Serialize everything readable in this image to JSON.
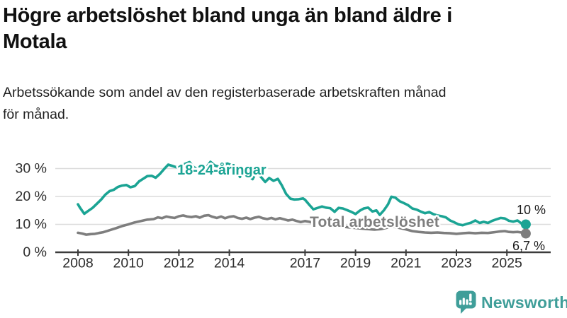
{
  "header": {
    "title_lines": [
      "Högre arbetslöshet bland unga än bland äldre i",
      "Motala"
    ],
    "subtitle_lines": [
      "Arbetssökande som andel av den registerbaserade arbetskraften månad",
      "för månad."
    ]
  },
  "chart_data": {
    "type": "line",
    "title": "Högre arbetslöshet bland unga än bland äldre i Motala",
    "subtitle": "Arbetssökande som andel av den registerbaserade arbetskraften månad för månad.",
    "unit": "%",
    "xlim": [
      2007.1,
      2026.7
    ],
    "ylim": [
      0,
      35
    ],
    "grid": true,
    "legend_position": "inline-labels",
    "colors": {
      "grid": "#dcdcdc",
      "axis": "#3c3c3c",
      "tick_label": "#2d2d2d",
      "end_label": "#1a1a1a"
    },
    "y_ticks": [
      {
        "value": 0,
        "label": "0 %"
      },
      {
        "value": 10,
        "label": "10 %"
      },
      {
        "value": 20,
        "label": "20 %"
      },
      {
        "value": 30,
        "label": "30 %"
      }
    ],
    "x_ticks": [
      {
        "year": 2008,
        "label": "2008"
      },
      {
        "year": 2010,
        "label": "2010"
      },
      {
        "year": 2012,
        "label": "2012"
      },
      {
        "year": 2014,
        "label": "2014"
      },
      {
        "year": 2017,
        "label": "2017"
      },
      {
        "year": 2019,
        "label": "2019"
      },
      {
        "year": 2021,
        "label": "2021"
      },
      {
        "year": 2023,
        "label": "2023"
      },
      {
        "year": 2025,
        "label": "2025"
      }
    ],
    "series": [
      {
        "name": "18-24-åringar",
        "color": "#1ba494",
        "end_label": "10 %",
        "end_value": 10.0,
        "points": [
          [
            2008.0,
            17.2
          ],
          [
            2008.08,
            16.0
          ],
          [
            2008.25,
            13.8
          ],
          [
            2008.42,
            14.9
          ],
          [
            2008.58,
            15.9
          ],
          [
            2008.75,
            17.4
          ],
          [
            2008.92,
            18.9
          ],
          [
            2009.08,
            20.6
          ],
          [
            2009.25,
            21.9
          ],
          [
            2009.42,
            22.4
          ],
          [
            2009.58,
            23.4
          ],
          [
            2009.75,
            23.9
          ],
          [
            2009.92,
            24.1
          ],
          [
            2010.08,
            23.3
          ],
          [
            2010.25,
            23.7
          ],
          [
            2010.42,
            25.4
          ],
          [
            2010.58,
            26.3
          ],
          [
            2010.75,
            27.3
          ],
          [
            2010.92,
            27.4
          ],
          [
            2011.08,
            26.7
          ],
          [
            2011.25,
            28.1
          ],
          [
            2011.42,
            29.9
          ],
          [
            2011.58,
            31.4
          ],
          [
            2011.75,
            30.9
          ],
          [
            2011.92,
            30.4
          ],
          [
            2012.08,
            31.0
          ],
          [
            2012.25,
            31.7
          ],
          [
            2012.42,
            32.3
          ],
          [
            2012.58,
            30.6
          ],
          [
            2012.75,
            29.6
          ],
          [
            2012.92,
            28.3
          ],
          [
            2013.08,
            30.2
          ],
          [
            2013.25,
            32.4
          ],
          [
            2013.42,
            31.1
          ],
          [
            2013.58,
            30.7
          ],
          [
            2013.75,
            31.3
          ],
          [
            2013.92,
            31.8
          ],
          [
            2014.08,
            31.2
          ],
          [
            2014.25,
            29.2
          ],
          [
            2014.42,
            27.0
          ],
          [
            2014.58,
            29.5
          ],
          [
            2014.75,
            27.5
          ],
          [
            2014.92,
            26.2
          ],
          [
            2015.08,
            28.8
          ],
          [
            2015.25,
            27.0
          ],
          [
            2015.42,
            25.2
          ],
          [
            2015.58,
            26.6
          ],
          [
            2015.75,
            25.6
          ],
          [
            2015.92,
            26.3
          ],
          [
            2016.08,
            24.0
          ],
          [
            2016.25,
            20.9
          ],
          [
            2016.42,
            19.2
          ],
          [
            2016.58,
            18.9
          ],
          [
            2016.75,
            19.0
          ],
          [
            2016.92,
            19.3
          ],
          [
            2017.0,
            18.8
          ],
          [
            2017.17,
            17.0
          ],
          [
            2017.33,
            15.4
          ],
          [
            2017.5,
            15.9
          ],
          [
            2017.67,
            16.4
          ],
          [
            2017.83,
            16.0
          ],
          [
            2018.0,
            15.8
          ],
          [
            2018.17,
            14.5
          ],
          [
            2018.33,
            15.9
          ],
          [
            2018.5,
            15.7
          ],
          [
            2018.67,
            15.1
          ],
          [
            2018.83,
            14.5
          ],
          [
            2019.0,
            13.7
          ],
          [
            2019.17,
            14.9
          ],
          [
            2019.33,
            15.7
          ],
          [
            2019.5,
            16.0
          ],
          [
            2019.67,
            14.6
          ],
          [
            2019.83,
            15.0
          ],
          [
            2019.96,
            13.4
          ],
          [
            2020.13,
            15.1
          ],
          [
            2020.29,
            17.2
          ],
          [
            2020.42,
            19.9
          ],
          [
            2020.58,
            19.6
          ],
          [
            2020.75,
            18.3
          ],
          [
            2020.92,
            17.6
          ],
          [
            2021.08,
            16.9
          ],
          [
            2021.25,
            15.7
          ],
          [
            2021.42,
            15.3
          ],
          [
            2021.58,
            14.6
          ],
          [
            2021.75,
            14.0
          ],
          [
            2021.92,
            14.4
          ],
          [
            2022.08,
            13.7
          ],
          [
            2022.25,
            13.2
          ],
          [
            2022.42,
            12.9
          ],
          [
            2022.58,
            12.5
          ],
          [
            2022.75,
            11.4
          ],
          [
            2022.92,
            10.7
          ],
          [
            2023.08,
            10.0
          ],
          [
            2023.25,
            9.7
          ],
          [
            2023.42,
            10.2
          ],
          [
            2023.58,
            10.6
          ],
          [
            2023.75,
            11.4
          ],
          [
            2023.92,
            10.5
          ],
          [
            2024.08,
            10.9
          ],
          [
            2024.25,
            10.5
          ],
          [
            2024.42,
            11.3
          ],
          [
            2024.58,
            11.8
          ],
          [
            2024.75,
            12.3
          ],
          [
            2024.92,
            12.1
          ],
          [
            2025.08,
            11.3
          ],
          [
            2025.25,
            11.0
          ],
          [
            2025.42,
            11.4
          ],
          [
            2025.58,
            10.3
          ],
          [
            2025.75,
            10.0
          ]
        ]
      },
      {
        "name": "Total arbetslöshet",
        "color": "#7e7e7e",
        "end_label": "6,7 %",
        "end_value": 6.7,
        "points": [
          [
            2008.0,
            7.0
          ],
          [
            2008.17,
            6.7
          ],
          [
            2008.33,
            6.3
          ],
          [
            2008.5,
            6.5
          ],
          [
            2008.67,
            6.6
          ],
          [
            2008.83,
            6.9
          ],
          [
            2009.0,
            7.2
          ],
          [
            2009.25,
            7.9
          ],
          [
            2009.5,
            8.6
          ],
          [
            2009.75,
            9.4
          ],
          [
            2010.0,
            10.0
          ],
          [
            2010.25,
            10.7
          ],
          [
            2010.5,
            11.2
          ],
          [
            2010.75,
            11.7
          ],
          [
            2011.0,
            11.9
          ],
          [
            2011.17,
            12.5
          ],
          [
            2011.33,
            12.2
          ],
          [
            2011.5,
            12.8
          ],
          [
            2011.67,
            12.5
          ],
          [
            2011.83,
            12.3
          ],
          [
            2012.0,
            12.9
          ],
          [
            2012.17,
            13.2
          ],
          [
            2012.33,
            12.8
          ],
          [
            2012.5,
            12.6
          ],
          [
            2012.67,
            12.9
          ],
          [
            2012.83,
            12.4
          ],
          [
            2013.0,
            13.1
          ],
          [
            2013.17,
            13.3
          ],
          [
            2013.33,
            12.7
          ],
          [
            2013.5,
            12.3
          ],
          [
            2013.67,
            12.8
          ],
          [
            2013.83,
            12.2
          ],
          [
            2014.0,
            12.7
          ],
          [
            2014.17,
            12.9
          ],
          [
            2014.33,
            12.3
          ],
          [
            2014.5,
            12.0
          ],
          [
            2014.67,
            12.4
          ],
          [
            2014.83,
            11.9
          ],
          [
            2015.0,
            12.4
          ],
          [
            2015.17,
            12.7
          ],
          [
            2015.33,
            12.2
          ],
          [
            2015.5,
            11.9
          ],
          [
            2015.67,
            12.3
          ],
          [
            2015.83,
            11.8
          ],
          [
            2016.0,
            12.2
          ],
          [
            2016.17,
            11.8
          ],
          [
            2016.33,
            11.4
          ],
          [
            2016.5,
            11.7
          ],
          [
            2016.67,
            11.2
          ],
          [
            2016.83,
            10.8
          ],
          [
            2017.0,
            11.2
          ],
          [
            2017.17,
            10.9
          ],
          [
            2017.33,
            10.5
          ],
          [
            2017.5,
            10.2
          ],
          [
            2017.75,
            9.9
          ],
          [
            2018.0,
            9.6
          ],
          [
            2018.25,
            9.4
          ],
          [
            2018.5,
            9.2
          ],
          [
            2018.75,
            8.9
          ],
          [
            2019.0,
            8.7
          ],
          [
            2019.25,
            8.5
          ],
          [
            2019.5,
            8.3
          ],
          [
            2019.75,
            8.1
          ],
          [
            2020.0,
            8.3
          ],
          [
            2020.25,
            8.8
          ],
          [
            2020.42,
            9.2
          ],
          [
            2020.58,
            9.0
          ],
          [
            2020.75,
            8.7
          ],
          [
            2021.0,
            8.2
          ],
          [
            2021.25,
            7.6
          ],
          [
            2021.5,
            7.3
          ],
          [
            2021.75,
            7.1
          ],
          [
            2022.0,
            7.0
          ],
          [
            2022.25,
            7.1
          ],
          [
            2022.5,
            6.9
          ],
          [
            2022.75,
            6.8
          ],
          [
            2023.0,
            6.6
          ],
          [
            2023.25,
            6.8
          ],
          [
            2023.5,
            7.0
          ],
          [
            2023.75,
            6.8
          ],
          [
            2024.0,
            7.0
          ],
          [
            2024.25,
            6.9
          ],
          [
            2024.5,
            7.2
          ],
          [
            2024.75,
            7.5
          ],
          [
            2024.92,
            7.6
          ],
          [
            2025.08,
            7.3
          ],
          [
            2025.25,
            7.2
          ],
          [
            2025.42,
            7.3
          ],
          [
            2025.58,
            7.1
          ],
          [
            2025.75,
            6.7
          ]
        ]
      }
    ]
  },
  "footer": {
    "brand": "Newsworthy",
    "brand_color": "#3f9e99"
  }
}
